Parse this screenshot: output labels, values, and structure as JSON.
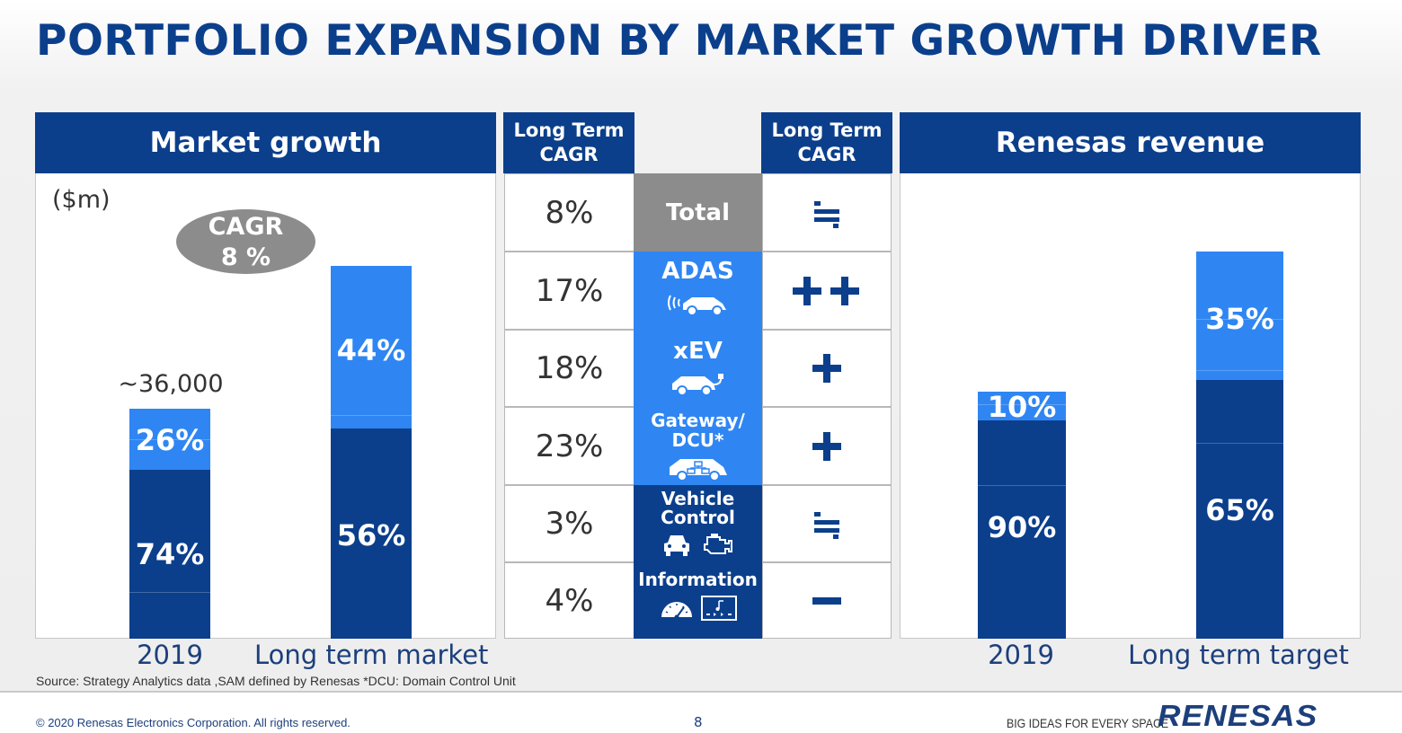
{
  "title": "PORTFOLIO EXPANSION BY MARKET GROWTH DRIVER",
  "market": {
    "header": "Market growth",
    "unit": "($m)",
    "cagr_badge": {
      "line1": "CAGR",
      "line2": "8 %"
    },
    "value_2019": "~36,000",
    "x_labels": [
      "2019",
      "Long term market"
    ]
  },
  "table": {
    "left_header": "Long Term CAGR",
    "right_header": "Long Term CAGR",
    "rows": [
      {
        "cagr": "8%",
        "category": "Total",
        "impact": "≒",
        "impact_icon": "approx-equal-icon"
      },
      {
        "cagr": "17%",
        "category": "ADAS",
        "impact": "++",
        "impact_icon": "double-plus-icon"
      },
      {
        "cagr": "18%",
        "category": "xEV",
        "impact": "+",
        "impact_icon": "plus-icon"
      },
      {
        "cagr": "23%",
        "category": "Gateway/ DCU*",
        "impact": "+",
        "impact_icon": "plus-icon"
      },
      {
        "cagr": "3%",
        "category": "Vehicle Control",
        "impact": "≒",
        "impact_icon": "approx-equal-icon"
      },
      {
        "cagr": "4%",
        "category": "Information",
        "impact": "−",
        "impact_icon": "minus-icon"
      }
    ]
  },
  "revenue": {
    "header": "Renesas revenue",
    "x_labels": [
      "2019",
      "Long term target"
    ]
  },
  "colors": {
    "dark_blue": "#0b3f8c",
    "light_blue": "#2f86f3",
    "gray": "#8c8c8c"
  },
  "chart_data": [
    {
      "type": "bar",
      "stacked": true,
      "categories": [
        "2019",
        "Long term market"
      ],
      "series": [
        {
          "values": [
            74,
            56
          ],
          "color": "#0b3f8c"
        },
        {
          "values": [
            26,
            44
          ],
          "color": "#2f86f3"
        }
      ],
      "data_labels": [
        [
          "74%",
          "26%"
        ],
        [
          "56%",
          "44%"
        ]
      ],
      "annotations": [
        "~36,000",
        "CAGR 8 %"
      ],
      "ylabel": "($m)"
    },
    {
      "type": "bar",
      "stacked": true,
      "categories": [
        "2019",
        "Long term target"
      ],
      "series": [
        {
          "values": [
            90,
            65
          ],
          "color": "#0b3f8c"
        },
        {
          "values": [
            10,
            35
          ],
          "color": "#2f86f3"
        }
      ],
      "data_labels": [
        [
          "90%",
          "10%"
        ],
        [
          "65%",
          "35%"
        ]
      ]
    }
  ],
  "footer": {
    "source": "Source: Strategy Analytics data ,SAM defined by Renesas *DCU: Domain Control Unit",
    "copyright": "© 2020 Renesas Electronics Corporation. All rights reserved.",
    "page_number": "8",
    "tagline": "BIG IDEAS FOR EVERY SPACE",
    "logo_text": "RENESAS"
  }
}
